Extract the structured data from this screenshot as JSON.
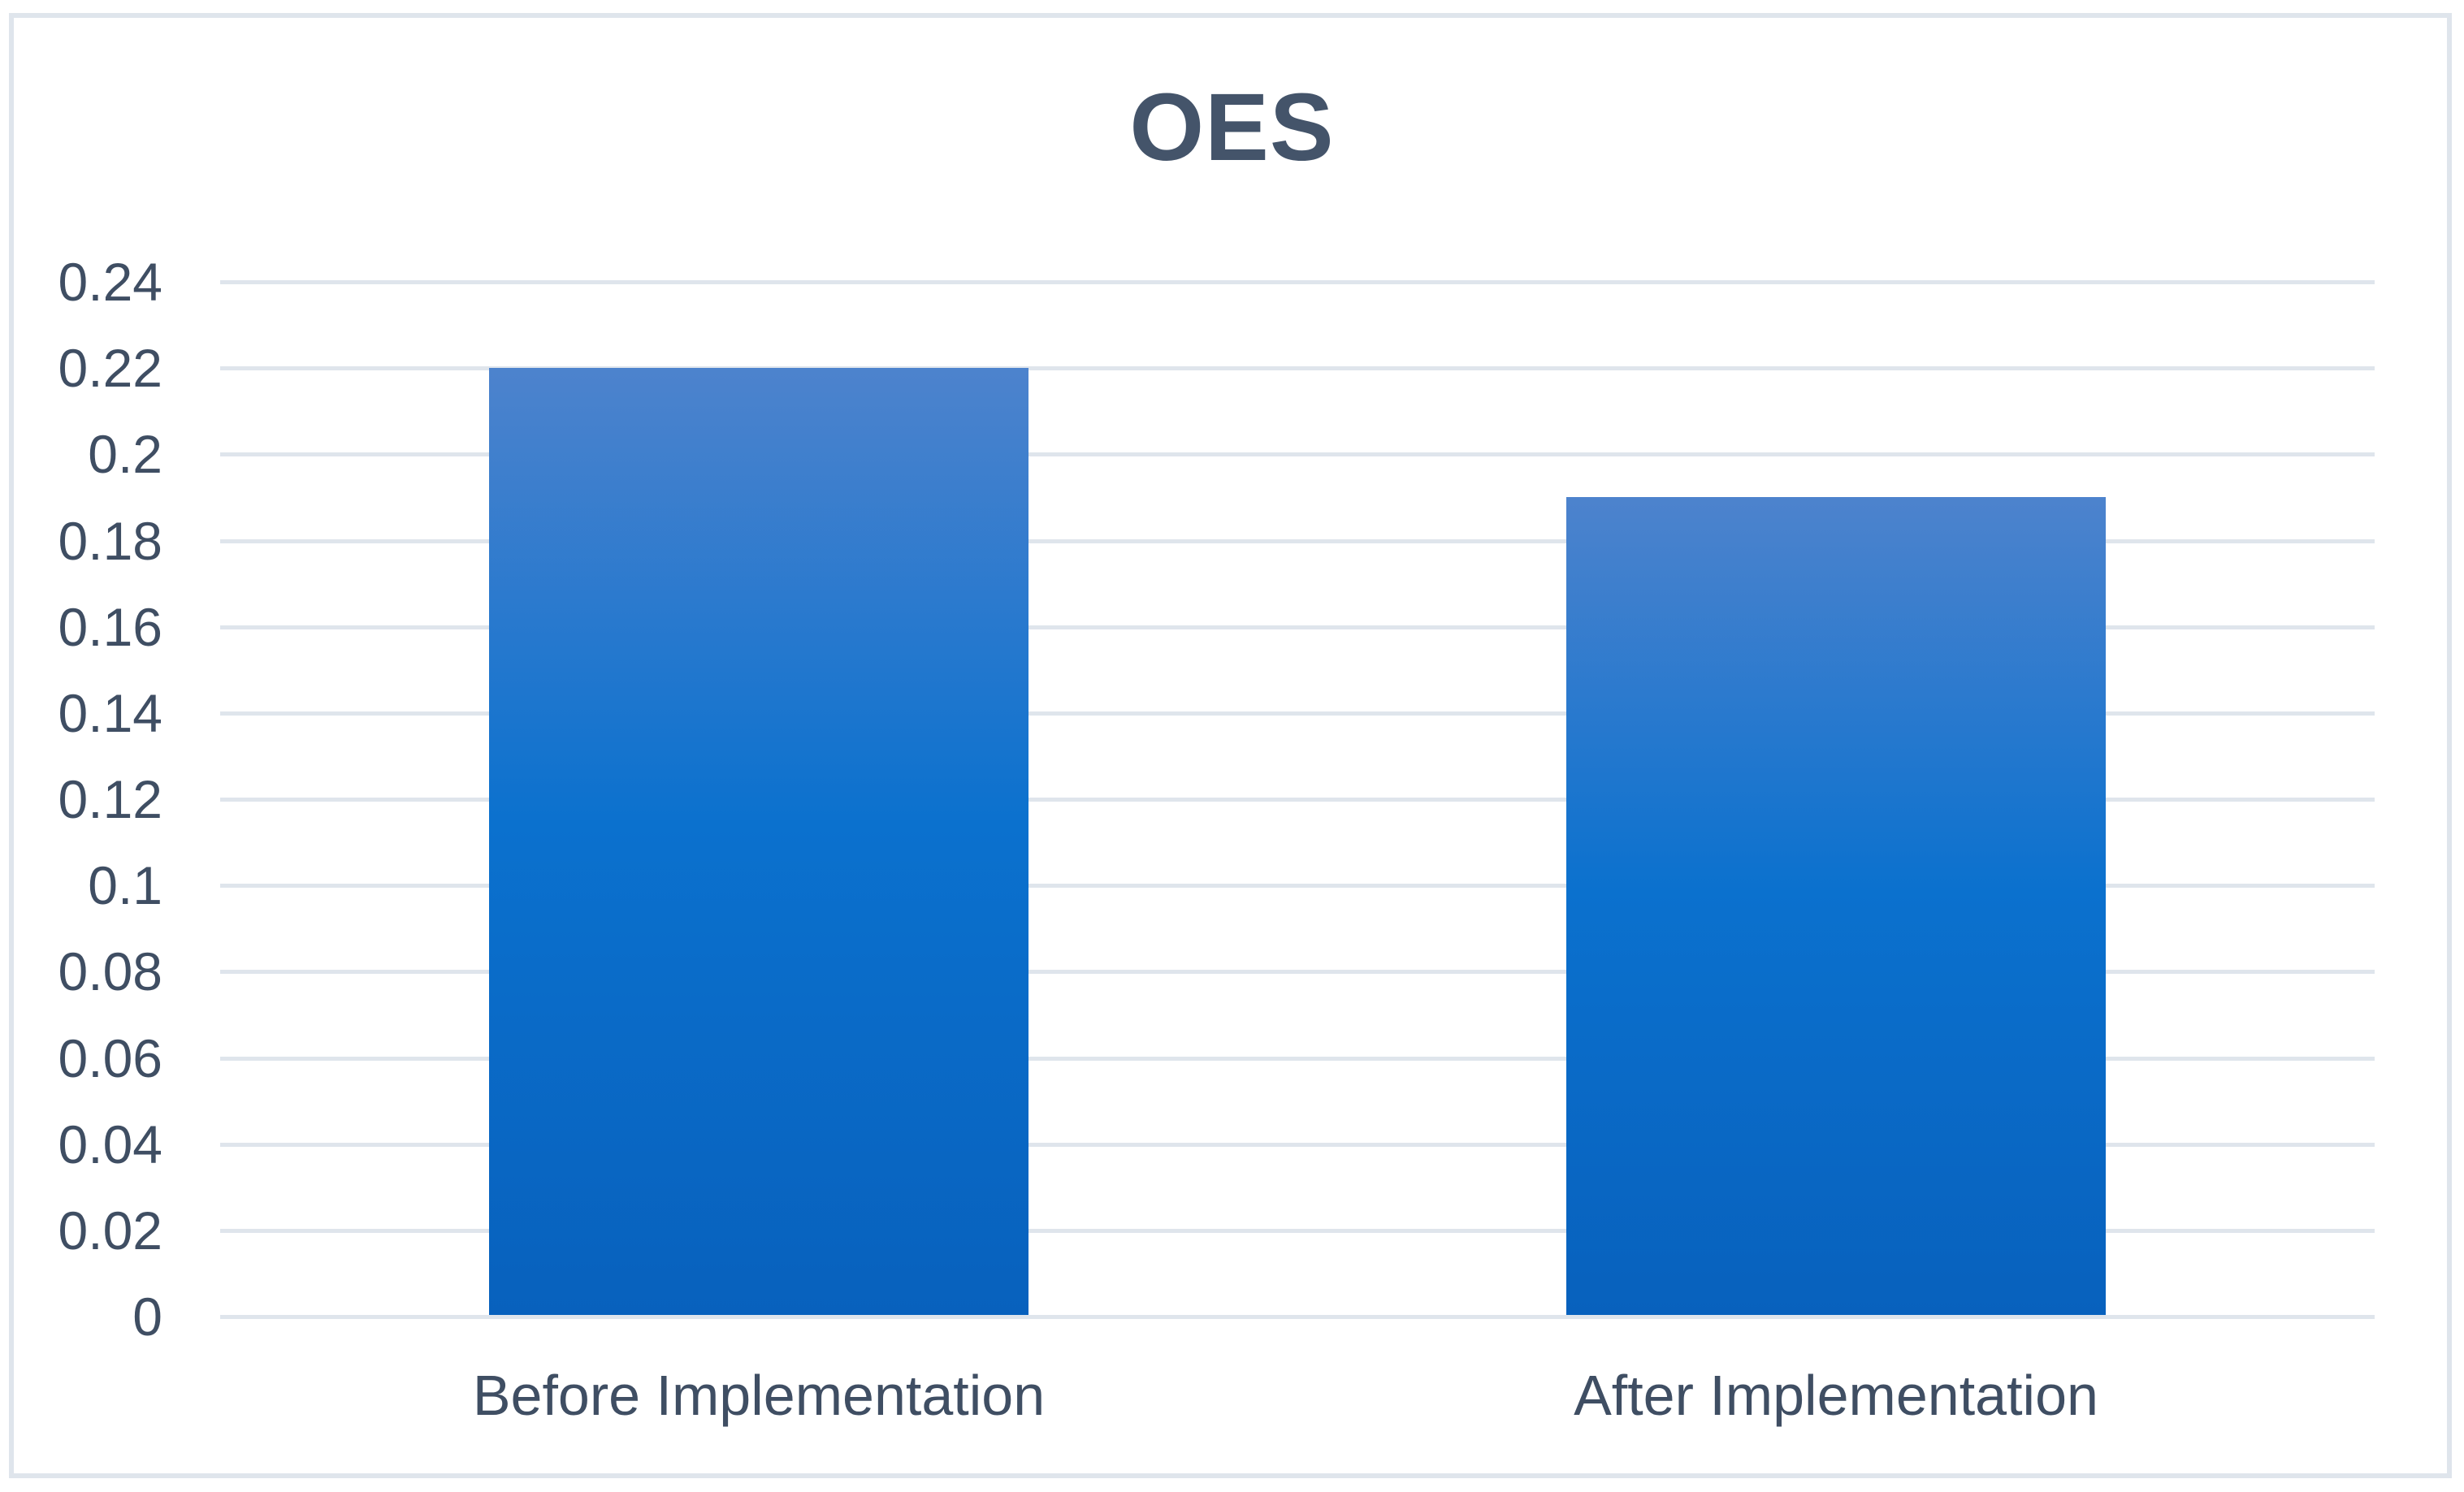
{
  "chart_data": {
    "type": "bar",
    "title": "OES",
    "categories": [
      "Before Implementation",
      "After Implementation"
    ],
    "values": [
      0.22,
      0.19
    ],
    "xlabel": "",
    "ylabel": "",
    "ylim": [
      0,
      0.24
    ],
    "ytick_step": 0.02,
    "ytick_labels": [
      "0",
      "0.02",
      "0.04",
      "0.06",
      "0.08",
      "0.1",
      "0.12",
      "0.14",
      "0.16",
      "0.18",
      "0.2",
      "0.22",
      "0.24"
    ],
    "grid": true,
    "legend_position": "none",
    "colors": {
      "bar_gradient_top": "#4d83cd",
      "bar_gradient_mid": "#0b71ce",
      "bar_gradient_bottom": "#0861bd",
      "gridline": "#dfe5ec",
      "frame_border": "#dfe5ec",
      "title_text": "#44546a",
      "axis_text": "#3f4e63",
      "background": "#ffffff"
    }
  }
}
